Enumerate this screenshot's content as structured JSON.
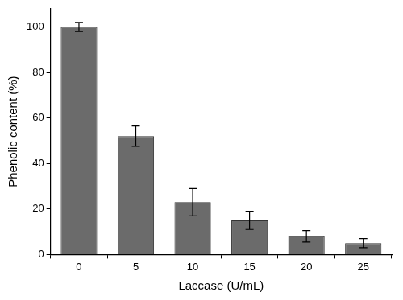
{
  "chart_data": {
    "type": "bar",
    "x_label": "Laccase (U/mL)",
    "y_label": "Phenolic content (%)",
    "categories": [
      "0",
      "5",
      "10",
      "15",
      "20",
      "25"
    ],
    "values": [
      100,
      52,
      23,
      15,
      8,
      5
    ],
    "errors": [
      2,
      4.5,
      6,
      4,
      2.5,
      2
    ],
    "color": "#6b6b6b",
    "ylim": [
      0,
      108
    ],
    "yticks": [
      0,
      20,
      40,
      60,
      80,
      100
    ],
    "grid": false
  }
}
